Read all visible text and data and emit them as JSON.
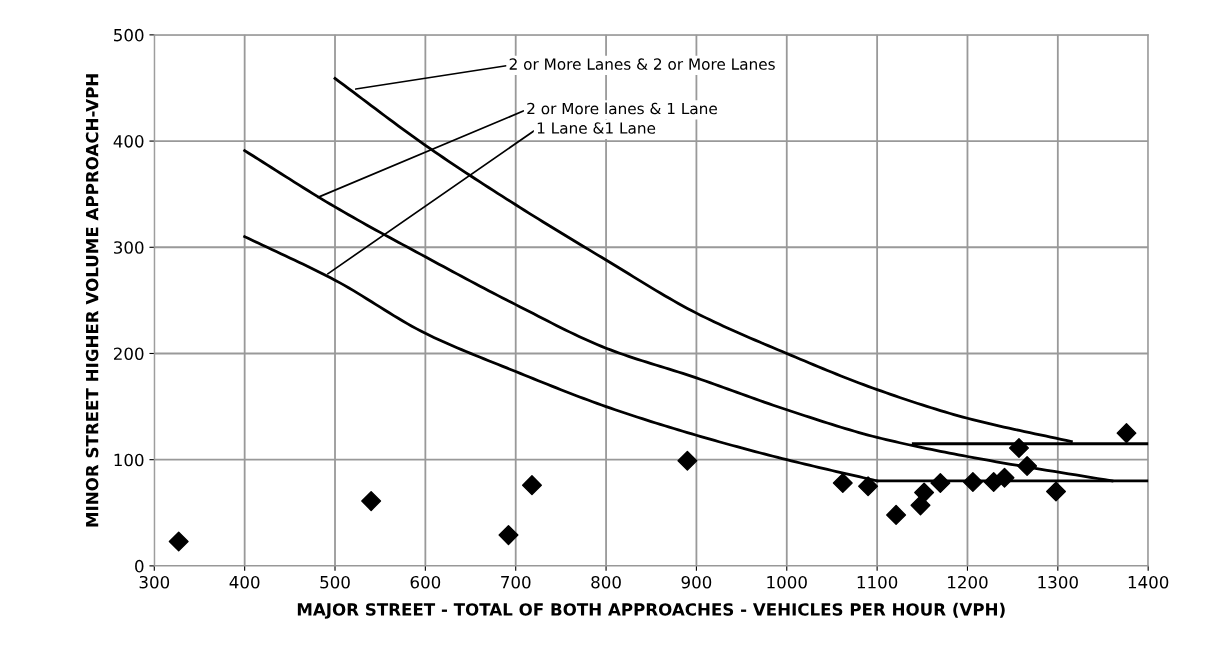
{
  "chart_data": {
    "type": "line",
    "xlabel": "MAJOR STREET - TOTAL OF BOTH APPROACHES - VEHICLES PER HOUR (VPH)",
    "ylabel": "MINOR STREET HIGHER VOLUME APPROACH-VPH",
    "xlim": [
      300,
      1400
    ],
    "ylim": [
      0,
      500
    ],
    "xticks": [
      300,
      400,
      500,
      600,
      700,
      800,
      900,
      1000,
      1100,
      1200,
      1300,
      1400
    ],
    "yticks": [
      0,
      100,
      200,
      300,
      400,
      500
    ],
    "grid": true,
    "marker": "none",
    "line_style": "solid",
    "series": [
      {
        "color": "#000000",
        "x": [
          500,
          600,
          700,
          800,
          900,
          1000,
          1100,
          1200,
          1315
        ],
        "values": [
          459,
          396,
          340,
          288,
          238,
          200,
          166,
          139,
          117
        ]
      },
      {
        "color": "#000000",
        "x": [
          400,
          500,
          600,
          700,
          800,
          900,
          1000,
          1100,
          1200,
          1360
        ],
        "values": [
          391,
          338,
          291,
          246,
          205,
          177,
          147,
          121,
          103,
          80
        ]
      },
      {
        "color": "#000000",
        "x": [
          400,
          500,
          600,
          700,
          800,
          900,
          1000,
          1100
        ],
        "values": [
          310,
          269,
          219,
          183,
          150,
          123,
          100,
          80
        ]
      },
      {
        "color": "#000000",
        "x": [
          1140,
          1400
        ],
        "values": [
          115,
          115
        ]
      },
      {
        "color": "#000000",
        "x": [
          1100,
          1400
        ],
        "values": [
          80,
          80
        ]
      },
      {
        "type": "scatter",
        "color": "#000000",
        "marker": "diamond",
        "x": [
          327,
          540,
          692,
          718,
          890,
          1062,
          1090,
          1121,
          1148,
          1152,
          1170,
          1206,
          1229,
          1241,
          1257,
          1266,
          1298,
          1376
        ],
        "values": [
          23,
          61,
          29,
          76,
          99,
          78,
          75,
          48,
          57,
          69,
          78,
          79,
          79,
          83,
          111,
          94,
          70,
          125
        ]
      }
    ],
    "annotations": [
      {
        "text": "2 or More Lanes & 2 or More Lanes",
        "x": 523,
        "y": 449
      },
      {
        "text": "2 or More lanes & 1 Lane",
        "x": 481,
        "y": 347
      },
      {
        "text": "1 Lane &1 Lane",
        "x": 492,
        "y": 275
      }
    ]
  }
}
